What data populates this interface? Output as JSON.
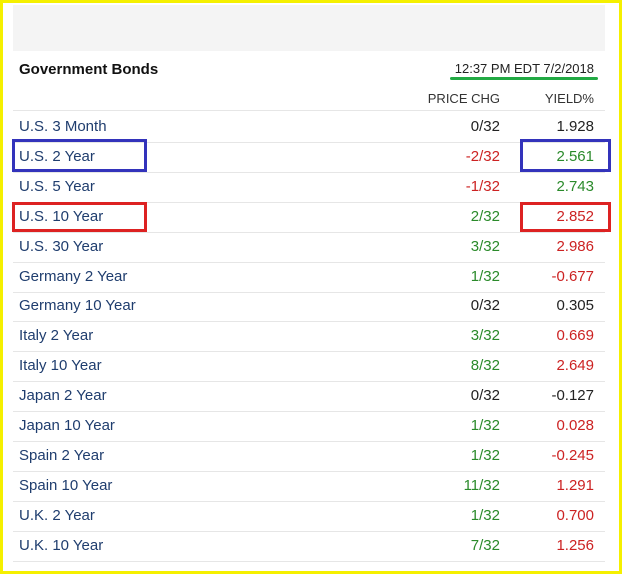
{
  "header": {
    "title": "Government Bonds",
    "timestamp": "12:37 PM EDT 7/2/2018"
  },
  "columns": [
    "PRICE CHG",
    "YIELD%"
  ],
  "rows": [
    {
      "name": "U.S. 3 Month",
      "price_chg": "0/32",
      "price_chg_color": "#222222",
      "yield": "1.928",
      "yield_color": "#222222"
    },
    {
      "name": "U.S. 2 Year",
      "price_chg": "-2/32",
      "price_chg_color": "#cc2222",
      "yield": "2.561",
      "yield_color": "#2a8a2a"
    },
    {
      "name": "U.S. 5 Year",
      "price_chg": "-1/32",
      "price_chg_color": "#cc2222",
      "yield": "2.743",
      "yield_color": "#2a8a2a"
    },
    {
      "name": "U.S. 10 Year",
      "price_chg": "2/32",
      "price_chg_color": "#2a8a2a",
      "yield": "2.852",
      "yield_color": "#cc2222"
    },
    {
      "name": "U.S. 30 Year",
      "price_chg": "3/32",
      "price_chg_color": "#2a8a2a",
      "yield": "2.986",
      "yield_color": "#cc2222"
    },
    {
      "name": "Germany 2 Year",
      "price_chg": "1/32",
      "price_chg_color": "#2a8a2a",
      "yield": "-0.677",
      "yield_color": "#cc2222"
    },
    {
      "name": "Germany 10 Year",
      "price_chg": "0/32",
      "price_chg_color": "#222222",
      "yield": "0.305",
      "yield_color": "#222222"
    },
    {
      "name": "Italy 2 Year",
      "price_chg": "3/32",
      "price_chg_color": "#2a8a2a",
      "yield": "0.669",
      "yield_color": "#cc2222"
    },
    {
      "name": "Italy 10 Year",
      "price_chg": "8/32",
      "price_chg_color": "#2a8a2a",
      "yield": "2.649",
      "yield_color": "#cc2222"
    },
    {
      "name": "Japan 2 Year",
      "price_chg": "0/32",
      "price_chg_color": "#222222",
      "yield": "-0.127",
      "yield_color": "#222222"
    },
    {
      "name": "Japan 10 Year",
      "price_chg": "1/32",
      "price_chg_color": "#2a8a2a",
      "yield": "0.028",
      "yield_color": "#cc2222"
    },
    {
      "name": "Spain 2 Year",
      "price_chg": "1/32",
      "price_chg_color": "#2a8a2a",
      "yield": "-0.245",
      "yield_color": "#cc2222"
    },
    {
      "name": "Spain 10 Year",
      "price_chg": "11/32",
      "price_chg_color": "#2a8a2a",
      "yield": "1.291",
      "yield_color": "#cc2222"
    },
    {
      "name": "U.K. 2 Year",
      "price_chg": "1/32",
      "price_chg_color": "#2a8a2a",
      "yield": "0.700",
      "yield_color": "#cc2222"
    },
    {
      "name": "U.K. 10 Year",
      "price_chg": "7/32",
      "price_chg_color": "#2a8a2a",
      "yield": "1.256",
      "yield_color": "#cc2222"
    }
  ]
}
